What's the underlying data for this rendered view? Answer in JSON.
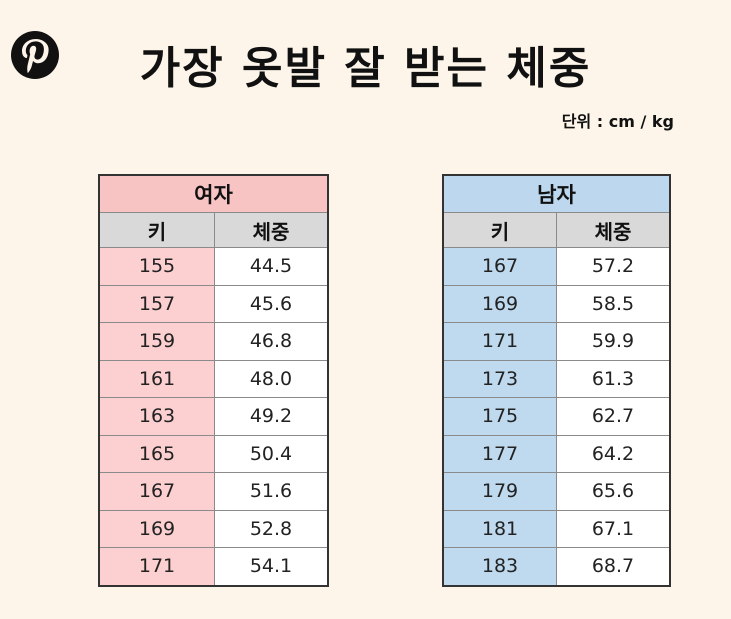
{
  "logo": {
    "icon": "pinterest-icon",
    "color": "#111111"
  },
  "title": "가장 옷발 잘 받는 체중",
  "unit": "단위 : cm / kg",
  "tables": {
    "women": {
      "header": "여자",
      "col_height": "키",
      "col_weight": "체중",
      "color": "#f7c3c3",
      "rows": [
        {
          "height": "155",
          "weight": "44.5"
        },
        {
          "height": "157",
          "weight": "45.6"
        },
        {
          "height": "159",
          "weight": "46.8"
        },
        {
          "height": "161",
          "weight": "48.0"
        },
        {
          "height": "163",
          "weight": "49.2"
        },
        {
          "height": "165",
          "weight": "50.4"
        },
        {
          "height": "167",
          "weight": "51.6"
        },
        {
          "height": "169",
          "weight": "52.8"
        },
        {
          "height": "171",
          "weight": "54.1"
        }
      ]
    },
    "men": {
      "header": "남자",
      "col_height": "키",
      "col_weight": "체중",
      "color": "#bdd7ee",
      "rows": [
        {
          "height": "167",
          "weight": "57.2"
        },
        {
          "height": "169",
          "weight": "58.5"
        },
        {
          "height": "171",
          "weight": "59.9"
        },
        {
          "height": "173",
          "weight": "61.3"
        },
        {
          "height": "175",
          "weight": "62.7"
        },
        {
          "height": "177",
          "weight": "64.2"
        },
        {
          "height": "179",
          "weight": "65.6"
        },
        {
          "height": "181",
          "weight": "67.1"
        },
        {
          "height": "183",
          "weight": "68.7"
        }
      ]
    }
  }
}
